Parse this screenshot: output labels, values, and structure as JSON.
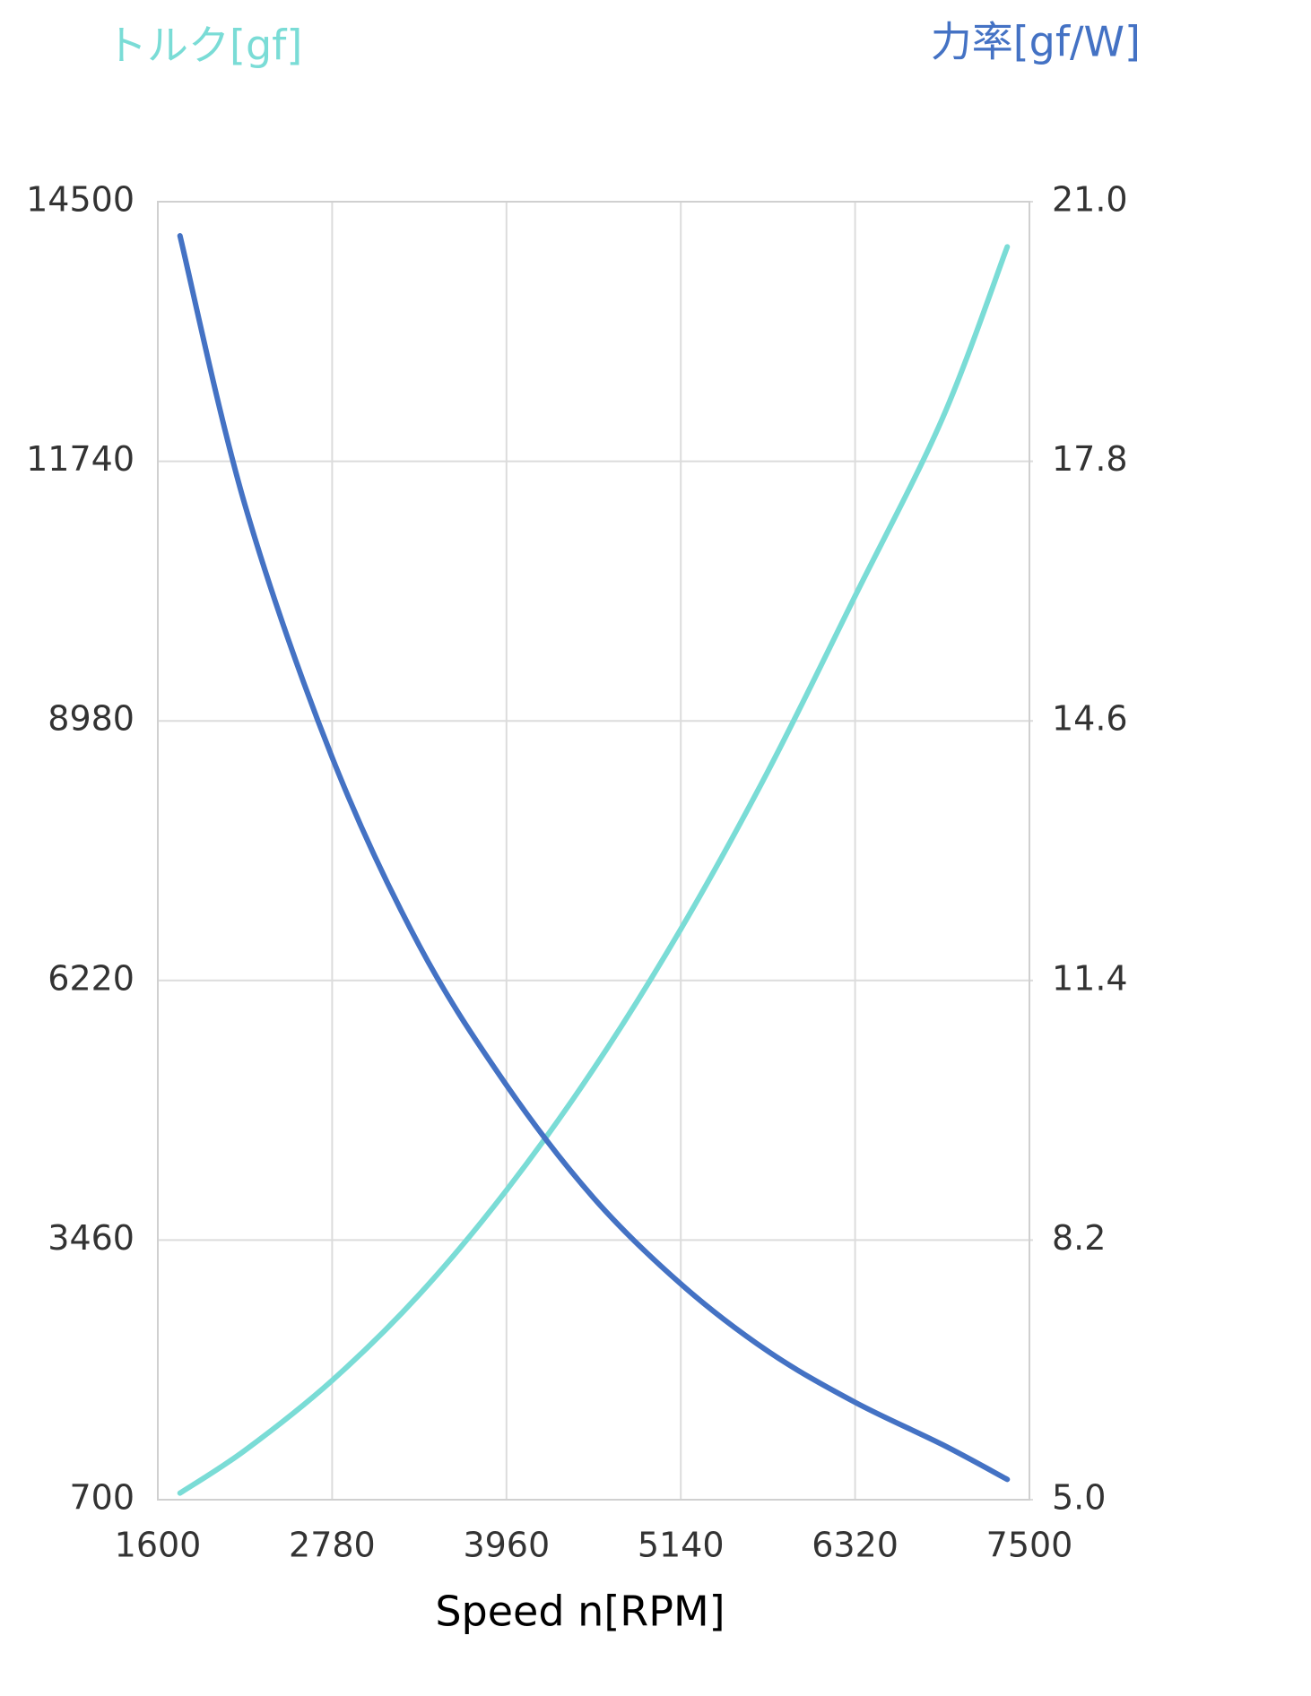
{
  "chart_data": {
    "type": "line",
    "title_left": "トルク[gf]",
    "title_right": "力率[gf/W]",
    "x_label": "Speed n[RPM]",
    "x": [
      1750,
      2190,
      2780,
      3370,
      3960,
      4550,
      5140,
      5730,
      6320,
      6910,
      7350
    ],
    "series": [
      {
        "color": "#7adcd6",
        "values": [
          770,
          1225,
          1968,
          2882,
          3990,
          5281,
          6766,
          8445,
          10307,
          12192,
          14020
        ]
      },
      {
        "color": "#4472c4",
        "axis": "y2",
        "values": [
          20.58,
          17.26,
          14.15,
          11.83,
          10.11,
          8.72,
          7.66,
          6.83,
          6.2,
          5.68,
          5.25
        ]
      }
    ],
    "xlim": [
      1600,
      7500
    ],
    "xticks": [
      1600,
      2780,
      3960,
      5140,
      6320,
      7500
    ],
    "ylim": [
      700,
      14500
    ],
    "yticks": [
      700,
      3460,
      6220,
      8980,
      11740,
      14500
    ],
    "y2lim": [
      5,
      21
    ],
    "y2ticks": [
      {
        "value": 5,
        "label": "5.0"
      },
      8.2,
      11.4,
      14.6,
      17.8,
      {
        "value": 21,
        "label": "21.0"
      }
    ],
    "grid": true
  }
}
